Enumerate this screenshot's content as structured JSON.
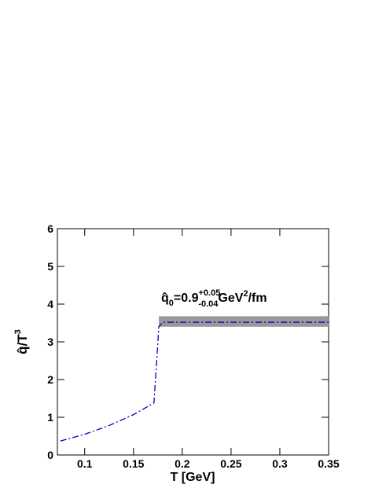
{
  "chart_data": {
    "type": "line",
    "x": [
      0.075,
      0.1,
      0.125,
      0.15,
      0.171,
      0.176,
      0.18,
      0.35
    ],
    "series": [
      {
        "color": "#0000cc",
        "values": [
          0.37,
          0.55,
          0.78,
          1.07,
          1.38,
          3.4,
          3.52,
          3.52
        ]
      }
    ],
    "band": {
      "x": [
        0.176,
        0.35
      ],
      "low": 3.4,
      "high": 3.68,
      "color": "#999999"
    },
    "xlim": [
      0.072,
      0.35
    ],
    "ylim": [
      0,
      6
    ],
    "xticks": [
      0.1,
      0.15,
      0.2,
      0.25,
      0.3,
      0.35
    ],
    "yticks": [
      0,
      1,
      2,
      3,
      4,
      5,
      6
    ],
    "xlabel": "T [GeV]",
    "ylabel": {
      "main": "q̂/T",
      "sup": "3"
    },
    "annotation": {
      "base": "q̂",
      "sub": "0",
      "main": "=0.9",
      "sup": "+0.05",
      "subsc": "-0.04",
      "unit": "GeV",
      "unit_sup": "2",
      "unit_end": "/fm"
    }
  }
}
